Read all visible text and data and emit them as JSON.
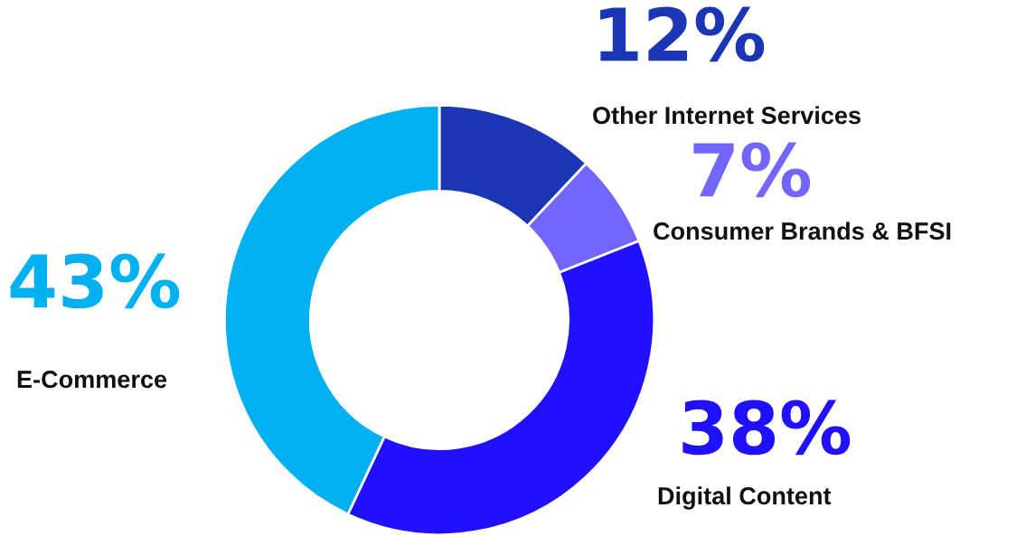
{
  "chart_data": {
    "type": "donut",
    "categories": [
      "Other Internet Services",
      "Consumer Brands & BFSI",
      "Digital Content",
      "E-Commerce"
    ],
    "values": [
      12,
      7,
      38,
      43
    ],
    "value_labels": [
      "12%",
      "7%",
      "38%",
      "43%"
    ],
    "colors": [
      "#1a35b5",
      "#7366ff",
      "#2010ff",
      "#00b0f0"
    ],
    "legend": false
  }
}
